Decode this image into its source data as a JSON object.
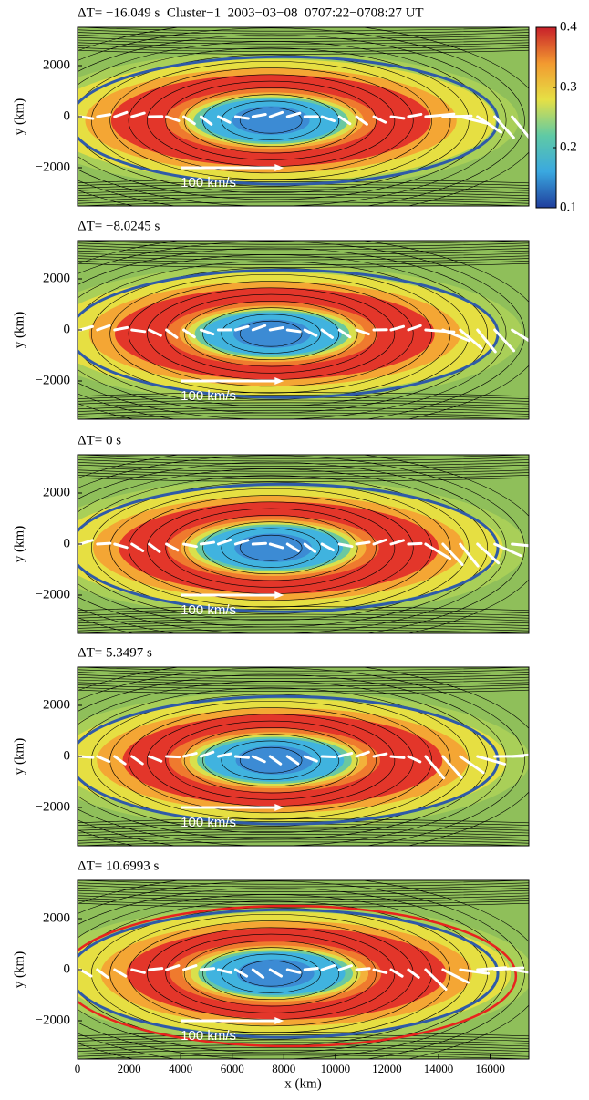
{
  "chart_data": [
    {
      "type": "contour",
      "title": "ΔT= −16.049 s  Cluster−1  2003−03−08  0707:22−0708:27 UT",
      "ylabel": "y (km)",
      "scale_label": "100 km/s",
      "xlim": [
        0,
        17500
      ],
      "ylim": [
        -3500,
        3500
      ],
      "yticks": [
        {
          "value": -2000,
          "label": "−2000"
        },
        0,
        2000
      ],
      "colorbar": {
        "clim": [
          0.1,
          0.4
        ],
        "ticks": [
          0.1,
          0.2,
          0.3,
          0.4
        ],
        "colormap": [
          "#1f3d9c",
          "#3aa8e0",
          "#5fcaa5",
          "#e6e045",
          "#f29a30",
          "#c8202a"
        ]
      }
    },
    {
      "type": "contour",
      "title": "ΔT= −8.0245 s",
      "ylabel": "y (km)",
      "scale_label": "100 km/s",
      "xlim": [
        0,
        17500
      ],
      "ylim": [
        -3500,
        3500
      ],
      "yticks": [
        {
          "value": -2000,
          "label": "−2000"
        },
        0,
        2000
      ]
    },
    {
      "type": "contour",
      "title": "ΔT= 0 s",
      "ylabel": "y (km)",
      "scale_label": "100 km/s",
      "xlim": [
        0,
        17500
      ],
      "ylim": [
        -3500,
        3500
      ],
      "yticks": [
        {
          "value": -2000,
          "label": "−2000"
        },
        0,
        2000
      ]
    },
    {
      "type": "contour",
      "title": "ΔT= 5.3497 s",
      "ylabel": "y (km)",
      "scale_label": "100 km/s",
      "xlim": [
        0,
        17500
      ],
      "ylim": [
        -3500,
        3500
      ],
      "yticks": [
        {
          "value": -2000,
          "label": "−2000"
        },
        0,
        2000
      ]
    },
    {
      "type": "contour",
      "title": "ΔT= 10.6993 s",
      "ylabel": "y (km)",
      "xlabel": "x (km)",
      "scale_label": "100 km/s",
      "xlim": [
        0,
        17500
      ],
      "ylim": [
        -3500,
        3500
      ],
      "yticks": [
        {
          "value": -2000,
          "label": "−2000"
        },
        0,
        2000
      ],
      "xticks": [
        0,
        2000,
        4000,
        6000,
        8000,
        10000,
        12000,
        14000,
        16000
      ]
    }
  ]
}
